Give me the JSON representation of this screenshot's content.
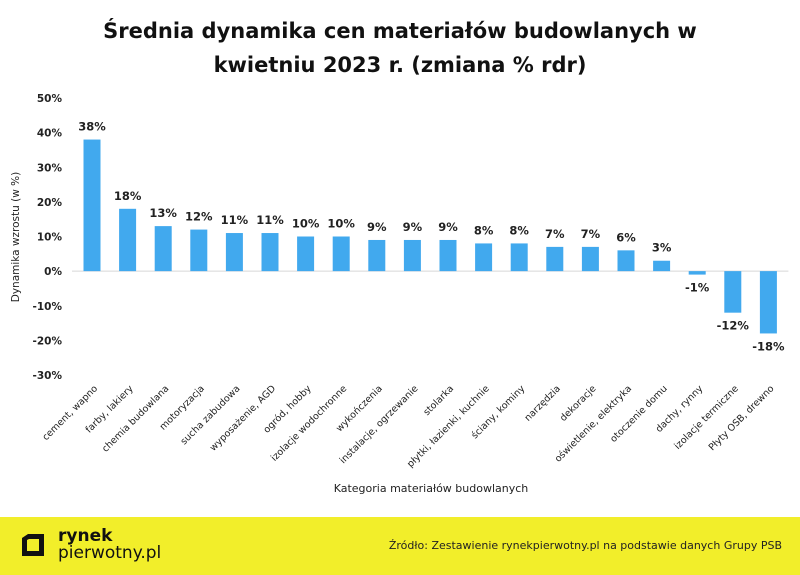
{
  "chart_data": {
    "type": "bar",
    "title_line1": "Średnia dynamika cen materiałów budowlanych w",
    "title_line2": "kwietniu 2023 r. (zmiana % rdr)",
    "xlabel": "Kategoria materiałów budowlanych",
    "ylabel": "Dynamika wzrostu (w %)",
    "ylim": [
      -30,
      50
    ],
    "yticks": [
      -30,
      -20,
      -10,
      0,
      10,
      20,
      30,
      40,
      50
    ],
    "ytick_labels": [
      "-30%",
      "-20%",
      "-10%",
      "0%",
      "10%",
      "20%",
      "30%",
      "40%",
      "50%"
    ],
    "grid": false,
    "bar_color": "#41a9ee",
    "categories": [
      "cement, wapno",
      "farby, lakiery",
      "chemia budowlana",
      "motoryzacja",
      "sucha zabudowa",
      "wyposażenie, AGD",
      "ogród, hobby",
      "izolacje wodochronne",
      "wykończenia",
      "instalacje, ogrzewanie",
      "stolarka",
      "płytki, łazienki, kuchnie",
      "ściany, kominy",
      "narzędzia",
      "dekoracje",
      "oświetlenie, elektryka",
      "otoczenie domu",
      "dachy, rynny",
      "izolacje termiczne",
      "Płyty OSB, drewno"
    ],
    "values": [
      38,
      18,
      13,
      12,
      11,
      11,
      10,
      10,
      9,
      9,
      9,
      8,
      8,
      7,
      7,
      6,
      3,
      -1,
      -12,
      -18
    ],
    "value_labels": [
      "38%",
      "18%",
      "13%",
      "12%",
      "11%",
      "11%",
      "10%",
      "10%",
      "9%",
      "9%",
      "9%",
      "8%",
      "8%",
      "7%",
      "7%",
      "6%",
      "3%",
      "-1%",
      "-12%",
      "-18%"
    ]
  },
  "footer": {
    "brand_line1": "rynek",
    "brand_line2": "pierwotny.pl",
    "source": "Źródło: Zestawienie rynekpierwotny.pl na podstawie danych Grupy PSB",
    "background": "#f2ee2a"
  }
}
